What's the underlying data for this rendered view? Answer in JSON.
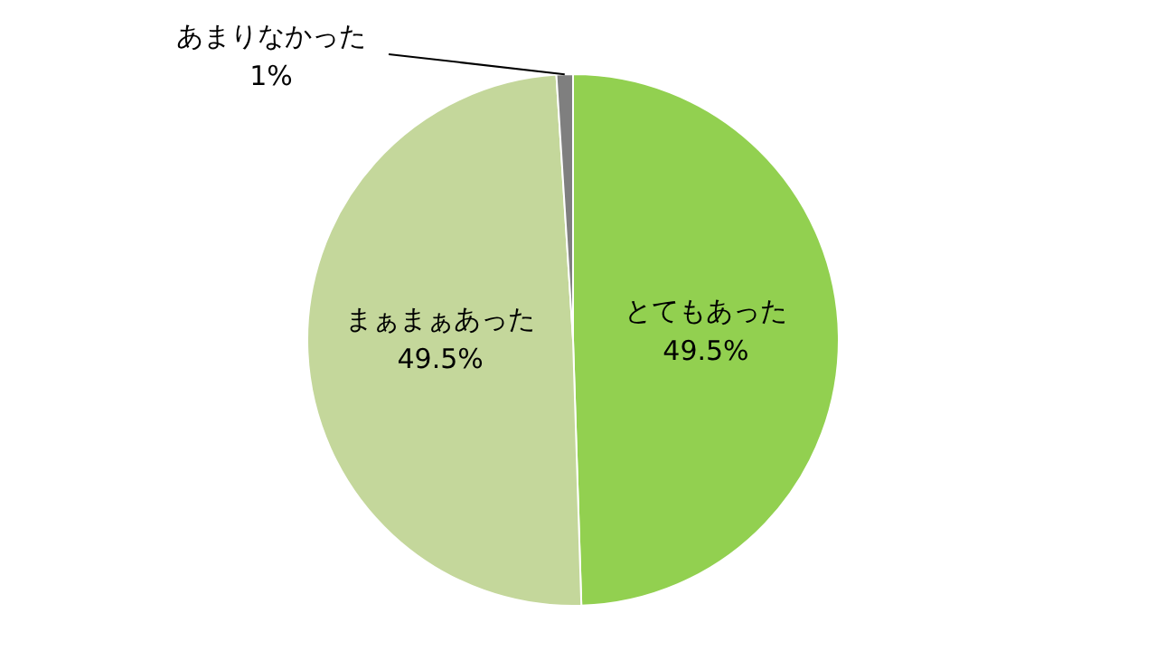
{
  "chart_data": {
    "type": "pie",
    "categories": [
      "とてもあった",
      "まぁまぁあった",
      "あまりなかった"
    ],
    "values": [
      49.5,
      49.5,
      1
    ],
    "colors": [
      "#92d050",
      "#c4d79b",
      "#7f7f7f"
    ],
    "value_labels": [
      "49.5%",
      "49.5%",
      "1%"
    ],
    "legend": false
  }
}
